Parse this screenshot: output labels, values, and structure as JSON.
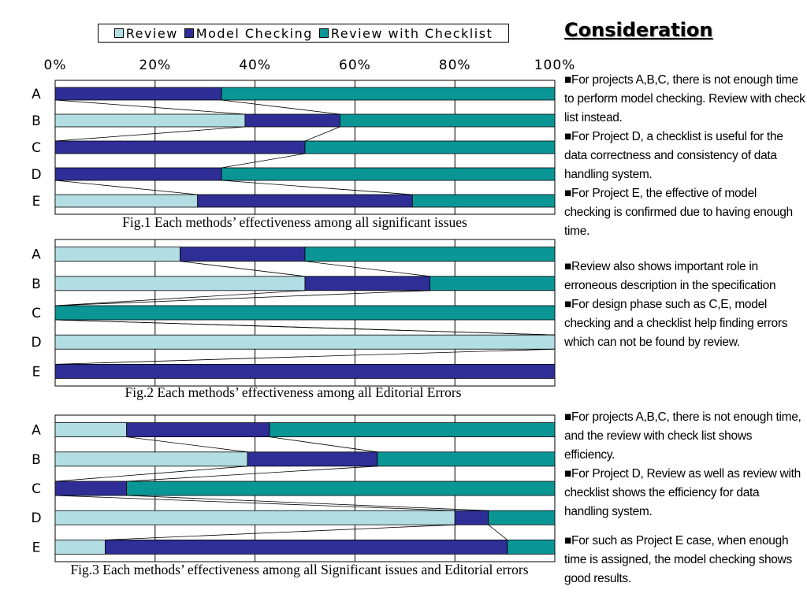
{
  "title": "Consideration",
  "colors": {
    "review": "#b2dde3",
    "model_checking": "#2e2e96",
    "review_with_checklist": "#0b9696"
  },
  "legend": {
    "review": "Review",
    "model_checking": "Model Checking",
    "review_with_checklist": "Review with Checklist"
  },
  "x_axis": {
    "ticks": [
      "0%",
      "20%",
      "40%",
      "60%",
      "80%",
      "100%"
    ]
  },
  "chart_data": [
    {
      "type": "bar",
      "stacked": true,
      "orientation": "horizontal",
      "title": "Fig.1 Each methods’ effectiveness among all significant issues",
      "categories": [
        "A",
        "B",
        "C",
        "D",
        "E"
      ],
      "xlim": [
        0,
        100
      ],
      "grid": true,
      "legend": "top",
      "series": [
        {
          "name": "Review",
          "values": [
            0,
            38,
            0,
            0,
            28.5
          ]
        },
        {
          "name": "Model Checking",
          "values": [
            33.3,
            19,
            50,
            33.3,
            43
          ]
        },
        {
          "name": "Review with Checklist",
          "values": [
            66.7,
            43,
            50,
            66.7,
            28.5
          ]
        }
      ]
    },
    {
      "type": "bar",
      "stacked": true,
      "orientation": "horizontal",
      "title": "Fig.2 Each methods’ effectiveness among all Editorial Errors",
      "categories": [
        "A",
        "B",
        "C",
        "D",
        "E"
      ],
      "xlim": [
        0,
        100
      ],
      "grid": true,
      "series": [
        {
          "name": "Review",
          "values": [
            25,
            50,
            0,
            100,
            0
          ]
        },
        {
          "name": "Model Checking",
          "values": [
            25,
            25,
            0,
            0,
            100
          ]
        },
        {
          "name": "Review with Checklist",
          "values": [
            50,
            25,
            100,
            0,
            0
          ]
        }
      ]
    },
    {
      "type": "bar",
      "stacked": true,
      "orientation": "horizontal",
      "title": "Fig.3 Each methods’ effectiveness among all Significant issues and Editorial errors",
      "categories": [
        "A",
        "B",
        "C",
        "D",
        "E"
      ],
      "xlim": [
        0,
        100
      ],
      "grid": true,
      "series": [
        {
          "name": "Review",
          "values": [
            14.3,
            38.5,
            0,
            80,
            10
          ]
        },
        {
          "name": "Model Checking",
          "values": [
            28.6,
            26,
            14.3,
            6.7,
            80.5
          ]
        },
        {
          "name": "Review with Checklist",
          "values": [
            57.1,
            35.5,
            85.7,
            13.3,
            9.5
          ]
        }
      ]
    }
  ],
  "notes": [
    {
      "items": [
        "■For projects A,B,C, there is not enough time to perform model checking. Review with check list instead.",
        "■For Project D, a checklist is useful for the data correctness and consistency of data handling system.",
        "■For Project E, the effective of model checking is confirmed due to having enough time."
      ]
    },
    {
      "items": [
        "■Review also shows important role in erroneous description in the specification",
        "■For design phase such as C,E, model checking and a checklist help finding errors which can not be found by review."
      ]
    },
    {
      "items": [
        "■For projects A,B,C, there is not enough time, and the review with check list shows efficiency.",
        "■For Project D, Review as well as review with checklist shows the efficiency for data handling system."
      ]
    },
    {
      "items": [
        "■For such as Project E case, when enough time is assigned, the model checking shows good results."
      ]
    }
  ]
}
